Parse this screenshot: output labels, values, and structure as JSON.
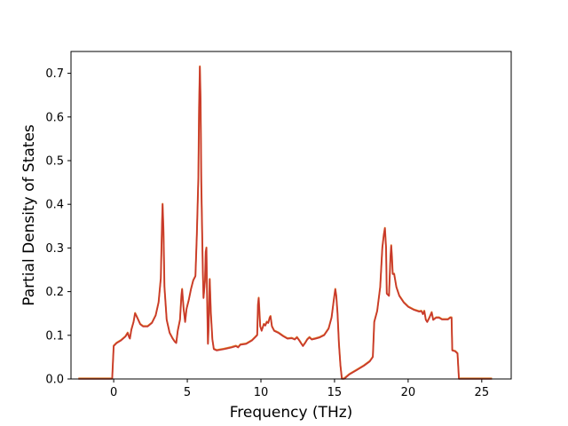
{
  "chart_data": {
    "type": "line",
    "title": "",
    "xlabel": "Frequency (THz)",
    "ylabel": "Partial Density of States",
    "xlim": [
      -2.9,
      27.0
    ],
    "ylim": [
      0.0,
      0.75
    ],
    "grid": false,
    "legend": "none",
    "x_ticks": [
      0,
      5,
      10,
      15,
      20,
      25
    ],
    "x_tick_labels": [
      "0",
      "5",
      "10",
      "15",
      "20",
      "25"
    ],
    "y_ticks": [
      0.0,
      0.1,
      0.2,
      0.3,
      0.4,
      0.5,
      0.6,
      0.7
    ],
    "y_tick_labels": [
      "0.0",
      "0.1",
      "0.2",
      "0.3",
      "0.4",
      "0.5",
      "0.6",
      "0.7"
    ],
    "colors": {
      "line_back": "#e07b2a",
      "line_front": "#c8372d",
      "axes": "#000000"
    },
    "series": [
      {
        "values": [
          [
            -2.4,
            0.0
          ],
          [
            -0.1,
            0.0
          ],
          [
            0.0,
            0.075
          ],
          [
            0.2,
            0.082
          ],
          [
            0.5,
            0.088
          ],
          [
            0.8,
            0.097
          ],
          [
            0.95,
            0.105
          ],
          [
            1.05,
            0.095
          ],
          [
            1.1,
            0.092
          ],
          [
            1.2,
            0.112
          ],
          [
            1.35,
            0.13
          ],
          [
            1.45,
            0.15
          ],
          [
            1.6,
            0.14
          ],
          [
            1.8,
            0.125
          ],
          [
            2.0,
            0.12
          ],
          [
            2.3,
            0.12
          ],
          [
            2.6,
            0.128
          ],
          [
            2.85,
            0.145
          ],
          [
            3.05,
            0.175
          ],
          [
            3.2,
            0.23
          ],
          [
            3.28,
            0.35
          ],
          [
            3.32,
            0.4
          ],
          [
            3.38,
            0.34
          ],
          [
            3.45,
            0.21
          ],
          [
            3.6,
            0.135
          ],
          [
            3.8,
            0.105
          ],
          [
            4.0,
            0.092
          ],
          [
            4.15,
            0.085
          ],
          [
            4.25,
            0.082
          ],
          [
            4.35,
            0.11
          ],
          [
            4.5,
            0.135
          ],
          [
            4.6,
            0.19
          ],
          [
            4.65,
            0.205
          ],
          [
            4.75,
            0.16
          ],
          [
            4.85,
            0.13
          ],
          [
            4.95,
            0.16
          ],
          [
            5.1,
            0.18
          ],
          [
            5.25,
            0.205
          ],
          [
            5.4,
            0.225
          ],
          [
            5.55,
            0.235
          ],
          [
            5.65,
            0.33
          ],
          [
            5.75,
            0.46
          ],
          [
            5.8,
            0.62
          ],
          [
            5.85,
            0.715
          ],
          [
            5.9,
            0.64
          ],
          [
            5.95,
            0.45
          ],
          [
            6.05,
            0.25
          ],
          [
            6.1,
            0.185
          ],
          [
            6.2,
            0.225
          ],
          [
            6.25,
            0.29
          ],
          [
            6.3,
            0.3
          ],
          [
            6.35,
            0.18
          ],
          [
            6.4,
            0.08
          ],
          [
            6.45,
            0.12
          ],
          [
            6.52,
            0.228
          ],
          [
            6.6,
            0.15
          ],
          [
            6.7,
            0.09
          ],
          [
            6.8,
            0.068
          ],
          [
            7.0,
            0.065
          ],
          [
            7.5,
            0.068
          ],
          [
            8.0,
            0.072
          ],
          [
            8.3,
            0.075
          ],
          [
            8.45,
            0.072
          ],
          [
            8.6,
            0.078
          ],
          [
            9.0,
            0.08
          ],
          [
            9.4,
            0.088
          ],
          [
            9.6,
            0.095
          ],
          [
            9.75,
            0.1
          ],
          [
            9.8,
            0.17
          ],
          [
            9.85,
            0.185
          ],
          [
            9.95,
            0.12
          ],
          [
            10.05,
            0.11
          ],
          [
            10.2,
            0.125
          ],
          [
            10.3,
            0.122
          ],
          [
            10.4,
            0.13
          ],
          [
            10.5,
            0.128
          ],
          [
            10.6,
            0.14
          ],
          [
            10.65,
            0.143
          ],
          [
            10.75,
            0.12
          ],
          [
            10.9,
            0.11
          ],
          [
            11.2,
            0.105
          ],
          [
            11.5,
            0.098
          ],
          [
            11.8,
            0.092
          ],
          [
            12.1,
            0.093
          ],
          [
            12.3,
            0.09
          ],
          [
            12.45,
            0.095
          ],
          [
            12.6,
            0.088
          ],
          [
            12.75,
            0.08
          ],
          [
            12.85,
            0.075
          ],
          [
            13.0,
            0.082
          ],
          [
            13.15,
            0.09
          ],
          [
            13.3,
            0.095
          ],
          [
            13.45,
            0.09
          ],
          [
            13.7,
            0.092
          ],
          [
            14.0,
            0.095
          ],
          [
            14.3,
            0.1
          ],
          [
            14.6,
            0.115
          ],
          [
            14.8,
            0.14
          ],
          [
            14.95,
            0.18
          ],
          [
            15.05,
            0.205
          ],
          [
            15.12,
            0.19
          ],
          [
            15.2,
            0.15
          ],
          [
            15.3,
            0.08
          ],
          [
            15.4,
            0.03
          ],
          [
            15.5,
            0.0
          ],
          [
            15.65,
            0.0
          ],
          [
            16.0,
            0.01
          ],
          [
            16.5,
            0.02
          ],
          [
            17.0,
            0.03
          ],
          [
            17.4,
            0.04
          ],
          [
            17.6,
            0.05
          ],
          [
            17.7,
            0.13
          ],
          [
            17.9,
            0.155
          ],
          [
            18.1,
            0.21
          ],
          [
            18.25,
            0.3
          ],
          [
            18.35,
            0.33
          ],
          [
            18.42,
            0.345
          ],
          [
            18.5,
            0.3
          ],
          [
            18.55,
            0.195
          ],
          [
            18.7,
            0.19
          ],
          [
            18.8,
            0.28
          ],
          [
            18.85,
            0.305
          ],
          [
            18.9,
            0.28
          ],
          [
            18.95,
            0.24
          ],
          [
            19.05,
            0.24
          ],
          [
            19.2,
            0.21
          ],
          [
            19.4,
            0.19
          ],
          [
            19.7,
            0.175
          ],
          [
            20.0,
            0.165
          ],
          [
            20.4,
            0.158
          ],
          [
            20.75,
            0.154
          ],
          [
            20.9,
            0.155
          ],
          [
            21.0,
            0.148
          ],
          [
            21.1,
            0.155
          ],
          [
            21.2,
            0.135
          ],
          [
            21.3,
            0.13
          ],
          [
            21.45,
            0.14
          ],
          [
            21.6,
            0.152
          ],
          [
            21.7,
            0.135
          ],
          [
            21.9,
            0.14
          ],
          [
            22.1,
            0.14
          ],
          [
            22.3,
            0.136
          ],
          [
            22.5,
            0.136
          ],
          [
            22.7,
            0.136
          ],
          [
            22.85,
            0.14
          ],
          [
            22.95,
            0.14
          ],
          [
            23.0,
            0.065
          ],
          [
            23.2,
            0.063
          ],
          [
            23.35,
            0.058
          ],
          [
            23.45,
            0.0
          ],
          [
            25.7,
            0.0
          ]
        ]
      }
    ]
  }
}
